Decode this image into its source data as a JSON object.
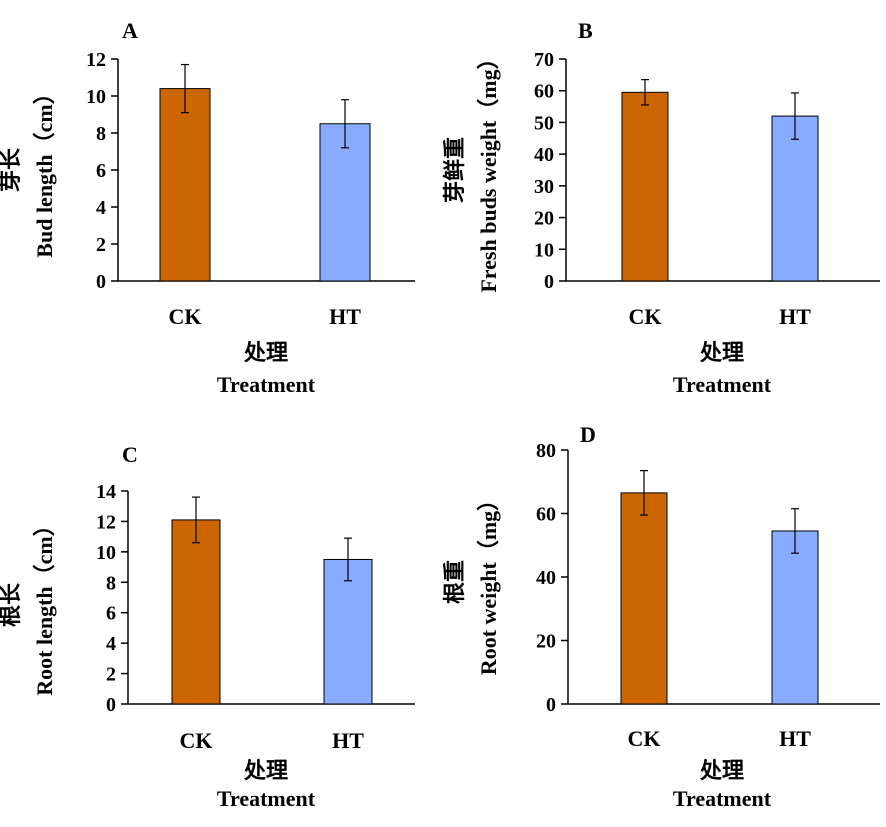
{
  "chart_data": [
    {
      "type": "bar",
      "panel": "A",
      "categories": [
        "CK",
        "HT"
      ],
      "values": [
        10.4,
        8.5
      ],
      "errors": [
        1.3,
        1.3
      ],
      "ylabel_cn": "芽长",
      "ylabel_en": "Bud length（cm）",
      "xlabel_cn": "处理",
      "xlabel_en": "Treatment",
      "ylim": [
        0,
        12
      ],
      "yticks": [
        0,
        2,
        4,
        6,
        8,
        10,
        12
      ],
      "grid": false,
      "bar_colors": [
        "#cc6600",
        "#88aaff"
      ]
    },
    {
      "type": "bar",
      "panel": "B",
      "categories": [
        "CK",
        "HT"
      ],
      "values": [
        59.5,
        52
      ],
      "errors": [
        4,
        7.3
      ],
      "ylabel_cn": "芽鲜重",
      "ylabel_en": "Fresh buds weight（mg）",
      "xlabel_cn": "处理",
      "xlabel_en": "Treatment",
      "ylim": [
        0,
        70
      ],
      "yticks": [
        0,
        10,
        20,
        30,
        40,
        50,
        60,
        70
      ],
      "grid": false,
      "bar_colors": [
        "#cc6600",
        "#88aaff"
      ]
    },
    {
      "type": "bar",
      "panel": "C",
      "categories": [
        "CK",
        "HT"
      ],
      "values": [
        12.1,
        9.5
      ],
      "errors": [
        1.5,
        1.4
      ],
      "ylabel_cn": "根长",
      "ylabel_en": "Root length（cm）",
      "xlabel_cn": "处理",
      "xlabel_en": "Treatment",
      "ylim": [
        0,
        14
      ],
      "yticks": [
        0,
        2,
        4,
        6,
        8,
        10,
        12,
        14
      ],
      "grid": false,
      "bar_colors": [
        "#cc6600",
        "#88aaff"
      ]
    },
    {
      "type": "bar",
      "panel": "D",
      "categories": [
        "CK",
        "HT"
      ],
      "values": [
        66.5,
        54.5
      ],
      "errors": [
        7,
        7
      ],
      "ylabel_cn": "根重",
      "ylabel_en": "Root weight（mg）",
      "xlabel_cn": "处理",
      "xlabel_en": "Treatment",
      "ylim": [
        0,
        80
      ],
      "yticks": [
        0,
        20,
        40,
        60,
        80
      ],
      "grid": false,
      "bar_colors": [
        "#cc6600",
        "#88aaff"
      ]
    }
  ]
}
